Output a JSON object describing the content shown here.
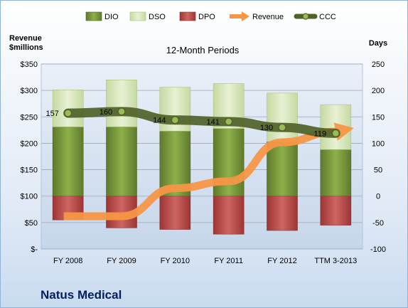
{
  "chart_data": {
    "type": "bar",
    "title": "12-Month Periods",
    "company": "Natus Medical",
    "left_axis": {
      "label_line1": "Revenue",
      "label_line2": "$millions",
      "ylim": [
        0,
        350
      ],
      "ticks": [
        0,
        50,
        100,
        150,
        200,
        250,
        300,
        350
      ],
      "tick_labels": [
        "$-",
        "$50",
        "$100",
        "$150",
        "$200",
        "$250",
        "$300",
        "$350"
      ]
    },
    "right_axis": {
      "label": "Days",
      "ylim": [
        -100,
        250
      ],
      "ticks": [
        -100,
        -50,
        0,
        50,
        100,
        150,
        200,
        250
      ],
      "tick_labels": [
        "-100",
        "-50",
        "0",
        "50",
        "100",
        "150",
        "200",
        "250"
      ]
    },
    "categories": [
      "FY 2008",
      "FY 2009",
      "FY 2010",
      "FY 2011",
      "FY 2012",
      "TTM 3-2013"
    ],
    "legend": {
      "placement": "top",
      "items": [
        "DIO",
        "DSO",
        "DPO",
        "Revenue",
        "CCC"
      ]
    },
    "series": [
      {
        "name": "DIO",
        "axis": "days",
        "values": [
          131,
          131,
          123,
          128,
          103,
          88
        ]
      },
      {
        "name": "DSO",
        "axis": "days",
        "values": [
          70,
          89,
          83,
          85,
          92,
          85
        ]
      },
      {
        "name": "DPO",
        "axis": "days",
        "values": [
          -45,
          -60,
          -63,
          -72,
          -65,
          -55
        ]
      },
      {
        "name": "Revenue",
        "axis": "revenue",
        "values": [
          62,
          62,
          115,
          128,
          202,
          222
        ]
      },
      {
        "name": "CCC",
        "axis": "days",
        "values": [
          157,
          160,
          144,
          141,
          130,
          119
        ]
      }
    ],
    "data_labels": [
      "157",
      "160",
      "144",
      "141",
      "130",
      "119"
    ],
    "colors": {
      "dio": "#77933c",
      "dso": "#d7e4bd",
      "dpo": "#c0504d",
      "revenue": "#f79646",
      "ccc": "#4f6228"
    },
    "grid": true
  }
}
